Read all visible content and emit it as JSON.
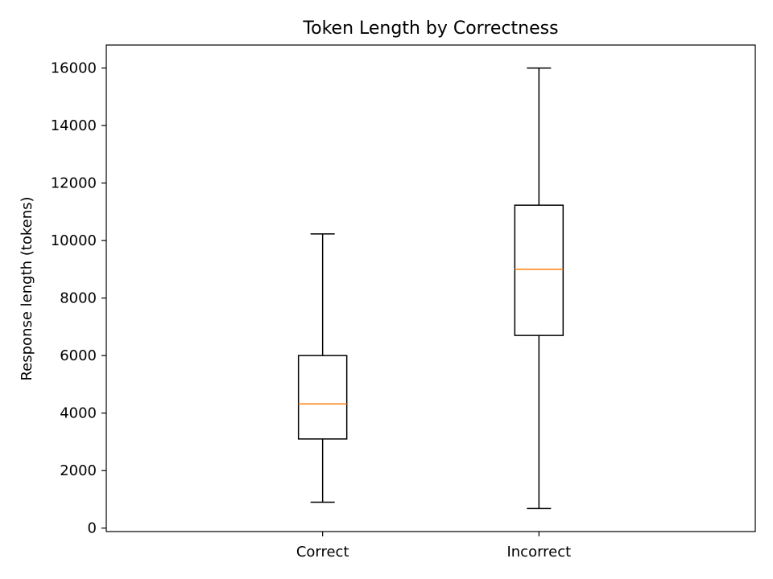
{
  "chart_data": {
    "type": "box",
    "title": "Token Length by Correctness",
    "xlabel": "",
    "ylabel": "Response length (tokens)",
    "categories": [
      "Correct",
      "Incorrect"
    ],
    "boxes": [
      {
        "category": "Correct",
        "whisker_low": 900,
        "q1": 3100,
        "median": 4320,
        "q3": 6000,
        "whisker_high": 10230
      },
      {
        "category": "Incorrect",
        "whisker_low": 680,
        "q1": 6700,
        "median": 9000,
        "q3": 11230,
        "whisker_high": 16000
      }
    ],
    "ylim": [
      -120,
      16800
    ],
    "yticks": [
      0,
      2000,
      4000,
      6000,
      8000,
      10000,
      12000,
      14000,
      16000
    ],
    "grid": false,
    "colors": {
      "box": "#000000",
      "median": "#ff7f0e"
    }
  }
}
